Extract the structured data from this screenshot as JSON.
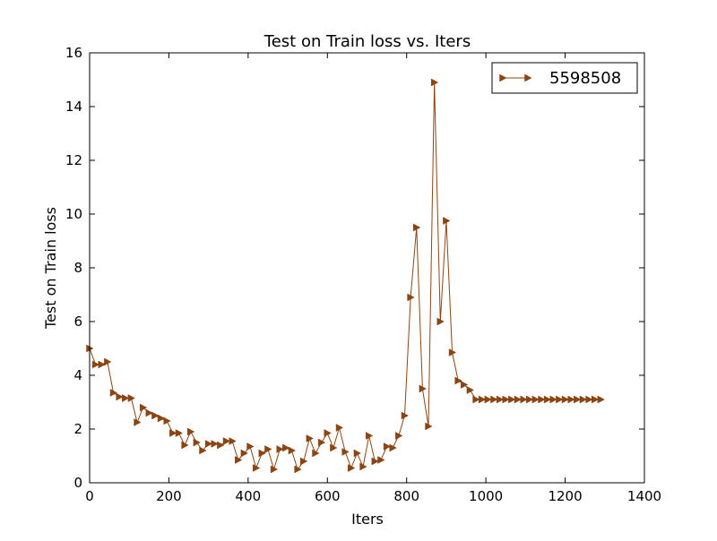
{
  "chart_data": {
    "type": "line",
    "title": "Test on Train loss  vs. Iters",
    "xlabel": "Iters",
    "ylabel": "Test on Train loss",
    "xlim": [
      0,
      1400
    ],
    "ylim": [
      0,
      16
    ],
    "xticks": [
      0,
      200,
      400,
      600,
      800,
      1000,
      1200,
      1400
    ],
    "yticks": [
      0,
      2,
      4,
      6,
      8,
      10,
      12,
      14,
      16
    ],
    "grid": false,
    "legend": "top-right",
    "series": [
      {
        "name": "5598508",
        "color": "#8B4513",
        "marker": "triangle-right",
        "x": [
          0,
          15,
          30,
          45,
          60,
          75,
          90,
          105,
          120,
          135,
          150,
          165,
          180,
          195,
          210,
          225,
          240,
          255,
          270,
          285,
          300,
          315,
          330,
          345,
          360,
          375,
          390,
          405,
          420,
          435,
          450,
          465,
          480,
          495,
          510,
          525,
          540,
          555,
          570,
          585,
          600,
          615,
          630,
          645,
          660,
          675,
          690,
          705,
          720,
          735,
          750,
          765,
          780,
          795,
          810,
          825,
          840,
          855,
          870,
          885,
          900,
          915,
          930,
          945,
          960,
          975,
          990,
          1005,
          1020,
          1035,
          1050,
          1065,
          1080,
          1095,
          1110,
          1125,
          1140,
          1155,
          1170,
          1185,
          1200,
          1215,
          1230,
          1245,
          1260,
          1275,
          1290
        ],
        "y": [
          5.0,
          4.4,
          4.4,
          4.5,
          3.35,
          3.2,
          3.15,
          3.15,
          2.25,
          2.8,
          2.6,
          2.5,
          2.4,
          2.3,
          1.85,
          1.85,
          1.4,
          1.9,
          1.5,
          1.2,
          1.45,
          1.45,
          1.4,
          1.55,
          1.55,
          0.85,
          1.1,
          1.35,
          0.55,
          1.1,
          1.25,
          0.5,
          1.25,
          1.3,
          1.2,
          0.5,
          0.8,
          1.65,
          1.1,
          1.5,
          1.85,
          1.3,
          2.05,
          1.15,
          0.55,
          1.1,
          0.6,
          1.75,
          0.8,
          0.85,
          1.35,
          1.3,
          1.75,
          2.5,
          6.9,
          9.5,
          3.5,
          2.1,
          14.9,
          6.0,
          9.75,
          4.85,
          3.8,
          3.65,
          3.45,
          3.1,
          3.1,
          3.1,
          3.1,
          3.1,
          3.1,
          3.1,
          3.1,
          3.1,
          3.1,
          3.1,
          3.1,
          3.1,
          3.1,
          3.1,
          3.1,
          3.1,
          3.1,
          3.1,
          3.1,
          3.1,
          3.1
        ]
      }
    ]
  }
}
